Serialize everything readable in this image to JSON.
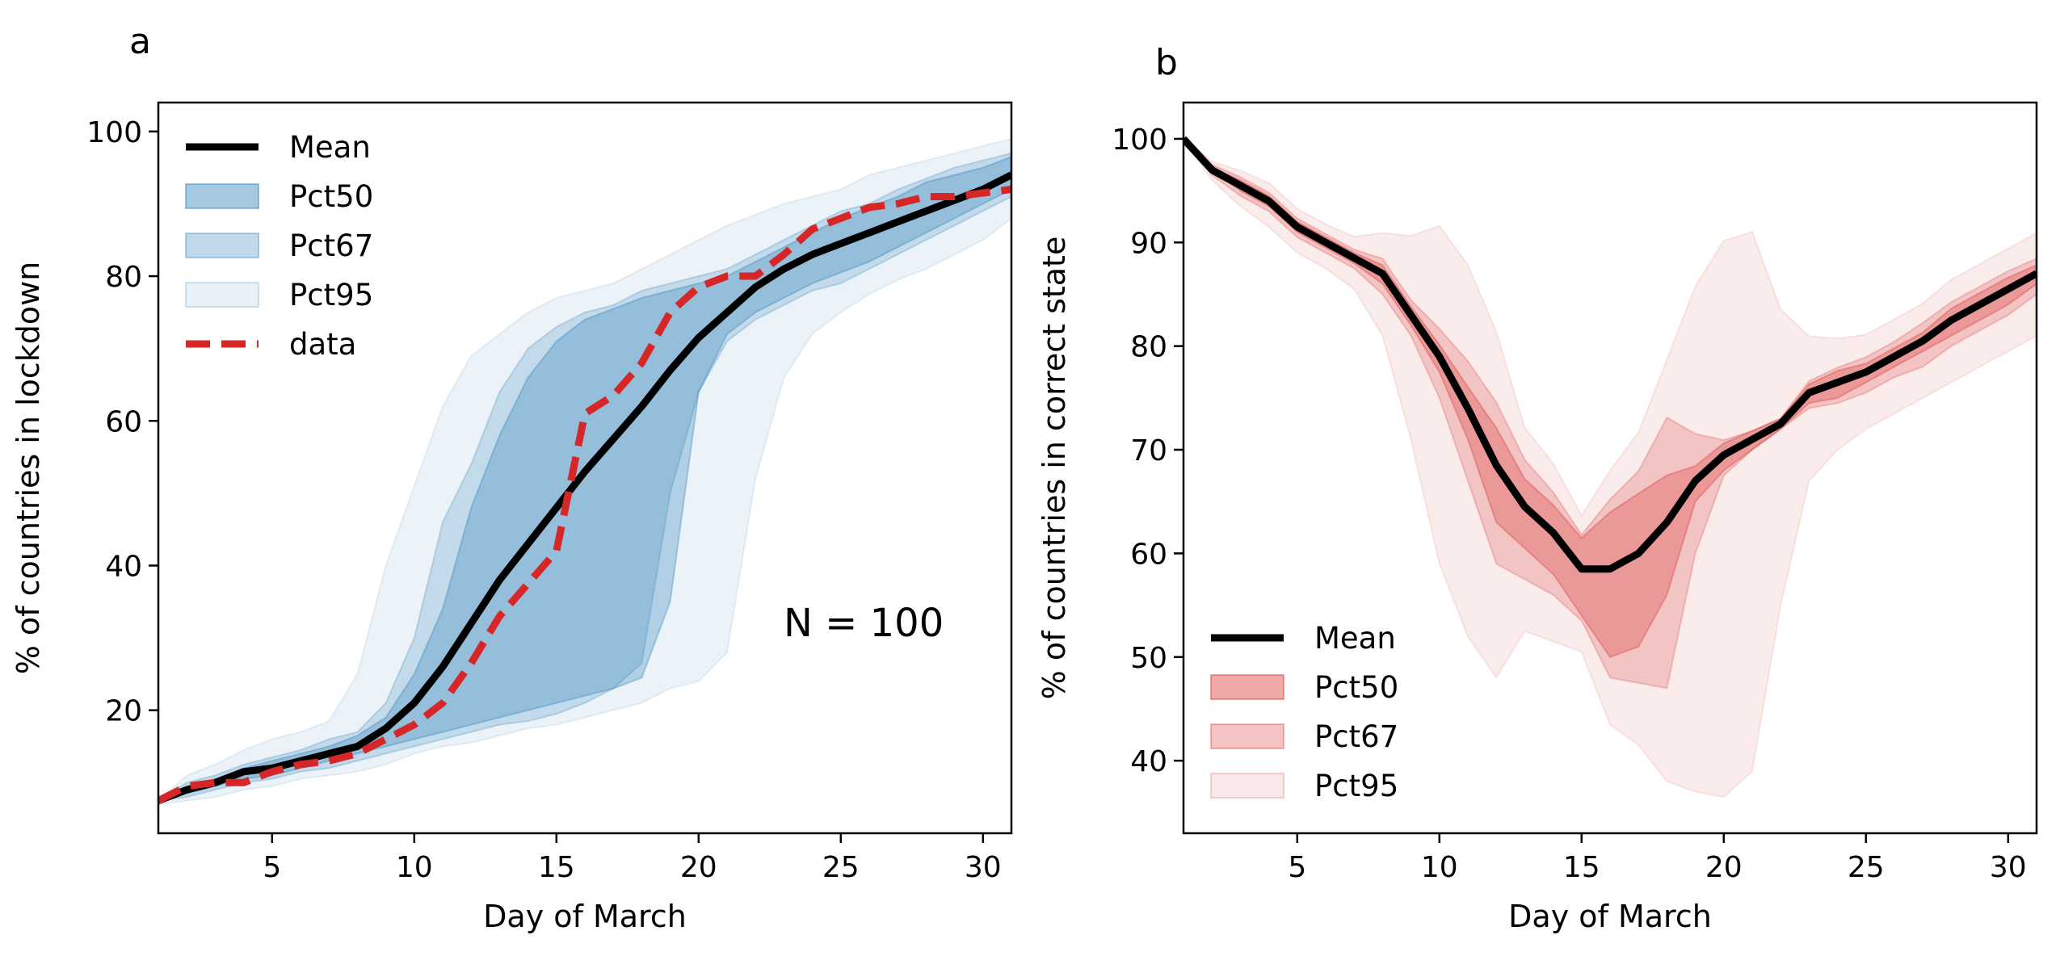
{
  "chart_data": [
    {
      "type": "line",
      "panel": "a",
      "xlabel": "Day of March",
      "ylabel": "% of countries in lockdown",
      "xlim": [
        1,
        31
      ],
      "ylim": [
        3,
        104
      ],
      "xticks": [
        5,
        10,
        15,
        20,
        25,
        30
      ],
      "yticks": [
        20,
        40,
        60,
        80,
        100
      ],
      "grid": false,
      "annotation": "N = 100",
      "legend_position": "top-left",
      "colors": {
        "band": "#1f77b4",
        "mean": "#000000",
        "data": "#d62728"
      },
      "x": [
        1,
        2,
        3,
        4,
        5,
        6,
        7,
        8,
        9,
        10,
        11,
        12,
        13,
        14,
        15,
        16,
        17,
        18,
        19,
        20,
        21,
        22,
        23,
        24,
        25,
        26,
        27,
        28,
        29,
        30,
        31
      ],
      "series": [
        {
          "name": "Mean",
          "kind": "line",
          "values": [
            7.5,
            9,
            10,
            11.5,
            12,
            13,
            14,
            15,
            17.5,
            21,
            26,
            32,
            38,
            43,
            48,
            53,
            57.5,
            62,
            67,
            71.5,
            75,
            78.5,
            81,
            83,
            84.5,
            86,
            87.5,
            89,
            90.5,
            92,
            94
          ]
        },
        {
          "name": "Pct50",
          "kind": "band",
          "lower": [
            7.5,
            8.5,
            9.5,
            10.5,
            11,
            12,
            13,
            14,
            15,
            16,
            17,
            18,
            19,
            20,
            21,
            22,
            23,
            24.5,
            35,
            64,
            72,
            75,
            77,
            79,
            80.5,
            82,
            84,
            86,
            88,
            90,
            92
          ],
          "upper": [
            7.5,
            9.5,
            10.5,
            12,
            13,
            14,
            15,
            16.5,
            19,
            25,
            34,
            48,
            58,
            66,
            71,
            74,
            75.5,
            77,
            78,
            79,
            80,
            82,
            84,
            86,
            88,
            89.5,
            91,
            93,
            94,
            95,
            96.5
          ]
        },
        {
          "name": "Pct67",
          "kind": "band",
          "lower": [
            7.5,
            8,
            9,
            10,
            10.5,
            11.5,
            12,
            13,
            14,
            15,
            16,
            17,
            18,
            18.5,
            19.5,
            21,
            23,
            26.5,
            50,
            64,
            71,
            74,
            76,
            78,
            79,
            81,
            83,
            85,
            87,
            89,
            91
          ],
          "upper": [
            7.5,
            10,
            11,
            12.5,
            13.5,
            14.5,
            16,
            17,
            21,
            30,
            46,
            54,
            64,
            70,
            73,
            75,
            76,
            78,
            79,
            80,
            81,
            83,
            85,
            87,
            89,
            90,
            92,
            93.5,
            95,
            96,
            97
          ]
        },
        {
          "name": "Pct95",
          "kind": "band",
          "lower": [
            7,
            7.5,
            8,
            9,
            9.5,
            10.5,
            11,
            11.5,
            12.5,
            14,
            15,
            15.5,
            16.5,
            17.5,
            18,
            19,
            20,
            21,
            23,
            24,
            28,
            52,
            66,
            72,
            75,
            77.5,
            79.5,
            81,
            83,
            85,
            88
          ],
          "upper": [
            7.5,
            11,
            12.5,
            14.5,
            16,
            17,
            18.5,
            25,
            40,
            51,
            62,
            69,
            72,
            75,
            77,
            78,
            79,
            81,
            83,
            85,
            87,
            88.5,
            90,
            91,
            92,
            94,
            95,
            96,
            97,
            98,
            99
          ]
        },
        {
          "name": "data",
          "kind": "dashed-line",
          "values": [
            7.5,
            9.5,
            10,
            10,
            11.5,
            12.5,
            13,
            14,
            16,
            18,
            21,
            26.5,
            33,
            37.5,
            42,
            61,
            63.5,
            68,
            75,
            78.5,
            80,
            80,
            83,
            86.5,
            88,
            89.5,
            90,
            91,
            91,
            91.5,
            92
          ]
        }
      ],
      "legend": [
        "Mean",
        "Pct50",
        "Pct67",
        "Pct95",
        "data"
      ]
    },
    {
      "type": "line",
      "panel": "b",
      "xlabel": "Day of March",
      "ylabel": "% of countries in correct state",
      "xlim": [
        1,
        31
      ],
      "ylim": [
        33,
        103.5
      ],
      "xticks": [
        5,
        10,
        15,
        20,
        25,
        30
      ],
      "yticks": [
        40,
        50,
        60,
        70,
        80,
        90,
        100
      ],
      "grid": false,
      "legend_position": "bottom-left",
      "colors": {
        "band": "#d62728",
        "mean": "#000000"
      },
      "x": [
        1,
        2,
        3,
        4,
        5,
        6,
        7,
        8,
        9,
        10,
        11,
        12,
        13,
        14,
        15,
        16,
        17,
        18,
        19,
        20,
        21,
        22,
        23,
        24,
        25,
        26,
        27,
        28,
        29,
        30,
        31
      ],
      "series": [
        {
          "name": "Mean",
          "kind": "line",
          "values": [
            100,
            97,
            95.5,
            94,
            91.5,
            90,
            88.5,
            87,
            83,
            79,
            74,
            68.5,
            64.5,
            62,
            58.5,
            58.5,
            60,
            63,
            67,
            69.5,
            71,
            72.5,
            75.5,
            76.5,
            77.5,
            79,
            80.5,
            82.5,
            84,
            85.5,
            87
          ]
        },
        {
          "name": "Pct50",
          "kind": "band",
          "lower": [
            100,
            97,
            95,
            93.5,
            91,
            89.5,
            88,
            86,
            82,
            77.5,
            71,
            63,
            60.5,
            58,
            54,
            50,
            51,
            56,
            65,
            68,
            70,
            72,
            74.5,
            75,
            76.5,
            78,
            79.5,
            81,
            82.5,
            84,
            86
          ]
        },
        {
          "name": "Pct67",
          "kind": "band",
          "lower": [
            100,
            96.5,
            94.5,
            93,
            90.5,
            89,
            87.5,
            85,
            81,
            75,
            67,
            59,
            57.5,
            56,
            53.5,
            48,
            47.5,
            47,
            60,
            67.5,
            70,
            72,
            74,
            74.5,
            75.5,
            77,
            78,
            80,
            81.5,
            83,
            85
          ]
        },
        {
          "name": "Pct95",
          "kind": "band",
          "lower": [
            100,
            96,
            93.5,
            91.5,
            89,
            87.5,
            85.5,
            81,
            71,
            59,
            52,
            48,
            52.5,
            51.5,
            50.5,
            43.5,
            41.5,
            38,
            37,
            36.5,
            39,
            55,
            67,
            70,
            72,
            73.5,
            75,
            76.5,
            78,
            79.5,
            81
          ]
        }
      ],
      "legend": [
        "Mean",
        "Pct50",
        "Pct67",
        "Pct95"
      ]
    }
  ]
}
